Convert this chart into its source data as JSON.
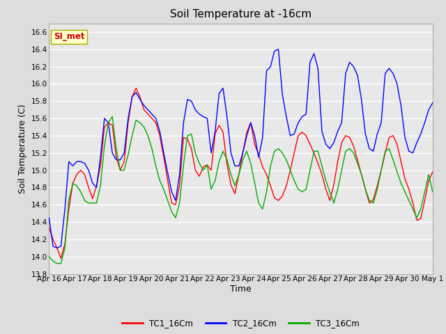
{
  "title": "Soil Temperature at -16cm",
  "xlabel": "Time",
  "ylabel": "Soil Temperature (C)",
  "ylim": [
    13.8,
    16.7
  ],
  "yticks": [
    13.8,
    14.0,
    14.2,
    14.4,
    14.6,
    14.8,
    15.0,
    15.2,
    15.4,
    15.6,
    15.8,
    16.0,
    16.2,
    16.4,
    16.6
  ],
  "xtick_labels": [
    "Apr 16",
    "Apr 17",
    "Apr 18",
    "Apr 19",
    "Apr 20",
    "Apr 21",
    "Apr 22",
    "Apr 23",
    "Apr 24",
    "Apr 25",
    "Apr 26",
    "Apr 27",
    "Apr 28",
    "Apr 29",
    "Apr 30",
    "May 1"
  ],
  "legend_labels": [
    "TC1_16Cm",
    "TC2_16Cm",
    "TC3_16Cm"
  ],
  "line_colors": [
    "#ff0000",
    "#0000ff",
    "#00aa00"
  ],
  "annotation_text": "SI_met",
  "annotation_color": "#cc0000",
  "annotation_bg": "#ffffcc",
  "background_color": "#dddddd",
  "plot_bg_color": "#e8e8e8",
  "grid_color": "#ffffff",
  "title_fontsize": 11,
  "axis_label_fontsize": 9,
  "tick_fontsize": 7.5,
  "legend_fontsize": 8.5,
  "TC1_16Cm": [
    14.33,
    14.2,
    14.1,
    13.98,
    14.15,
    14.55,
    14.85,
    14.95,
    15.0,
    14.95,
    14.8,
    14.67,
    14.82,
    15.05,
    15.5,
    15.55,
    15.52,
    15.15,
    15.0,
    15.1,
    15.55,
    15.85,
    15.95,
    15.85,
    15.7,
    15.65,
    15.6,
    15.55,
    15.4,
    15.15,
    14.88,
    14.62,
    14.6,
    14.82,
    15.38,
    15.36,
    15.25,
    15.0,
    14.93,
    15.04,
    15.06,
    15.0,
    15.42,
    15.52,
    15.44,
    15.07,
    14.83,
    14.73,
    14.95,
    15.2,
    15.44,
    15.55,
    15.3,
    15.18,
    15.04,
    14.95,
    14.82,
    14.68,
    14.65,
    14.7,
    14.82,
    15.0,
    15.2,
    15.4,
    15.44,
    15.4,
    15.3,
    15.2,
    15.08,
    14.95,
    14.78,
    14.65,
    14.83,
    15.1,
    15.32,
    15.4,
    15.38,
    15.28,
    15.12,
    14.95,
    14.78,
    14.62,
    14.66,
    14.82,
    15.0,
    15.2,
    15.38,
    15.4,
    15.3,
    15.1,
    14.9,
    14.78,
    14.62,
    14.42,
    14.44,
    14.65,
    14.88,
    14.98
  ],
  "TC2_16Cm": [
    14.45,
    14.12,
    14.1,
    14.12,
    14.55,
    15.1,
    15.05,
    15.1,
    15.1,
    15.08,
    15.0,
    14.85,
    14.8,
    15.15,
    15.6,
    15.55,
    15.2,
    15.12,
    15.12,
    15.2,
    15.6,
    15.85,
    15.9,
    15.82,
    15.75,
    15.7,
    15.65,
    15.6,
    15.45,
    15.2,
    14.97,
    14.75,
    14.65,
    14.95,
    15.55,
    15.82,
    15.8,
    15.7,
    15.65,
    15.62,
    15.6,
    15.2,
    15.45,
    15.89,
    15.95,
    15.62,
    15.2,
    15.05,
    15.05,
    15.2,
    15.4,
    15.55,
    15.4,
    15.15,
    15.38,
    16.15,
    16.2,
    16.38,
    16.4,
    15.88,
    15.62,
    15.4,
    15.42,
    15.55,
    15.62,
    15.65,
    16.25,
    16.35,
    16.18,
    15.45,
    15.3,
    15.25,
    15.32,
    15.45,
    15.55,
    16.12,
    16.25,
    16.2,
    16.1,
    15.82,
    15.42,
    15.25,
    15.22,
    15.42,
    15.55,
    16.12,
    16.18,
    16.12,
    16.0,
    15.75,
    15.38,
    15.22,
    15.2,
    15.32,
    15.42,
    15.55,
    15.7,
    15.78
  ],
  "TC3_16Cm": [
    14.0,
    13.95,
    13.92,
    13.92,
    14.1,
    14.65,
    14.85,
    14.82,
    14.75,
    14.65,
    14.62,
    14.62,
    14.62,
    14.82,
    15.28,
    15.55,
    15.62,
    15.25,
    15.0,
    15.0,
    15.18,
    15.4,
    15.58,
    15.55,
    15.5,
    15.4,
    15.25,
    15.05,
    14.88,
    14.78,
    14.65,
    14.52,
    14.45,
    14.62,
    15.06,
    15.4,
    15.42,
    15.2,
    15.08,
    15.0,
    15.06,
    14.78,
    14.88,
    15.1,
    15.22,
    15.12,
    14.95,
    14.82,
    14.95,
    15.12,
    15.22,
    15.08,
    14.85,
    14.62,
    14.55,
    14.75,
    15.05,
    15.22,
    15.25,
    15.2,
    15.12,
    15.0,
    14.88,
    14.78,
    14.75,
    14.78,
    15.0,
    15.22,
    15.22,
    15.05,
    14.88,
    14.75,
    14.62,
    14.78,
    15.0,
    15.22,
    15.25,
    15.2,
    15.08,
    14.95,
    14.78,
    14.65,
    14.62,
    14.78,
    15.0,
    15.22,
    15.25,
    15.12,
    14.98,
    14.85,
    14.75,
    14.65,
    14.55,
    14.45,
    14.55,
    14.75,
    14.95,
    14.75
  ]
}
